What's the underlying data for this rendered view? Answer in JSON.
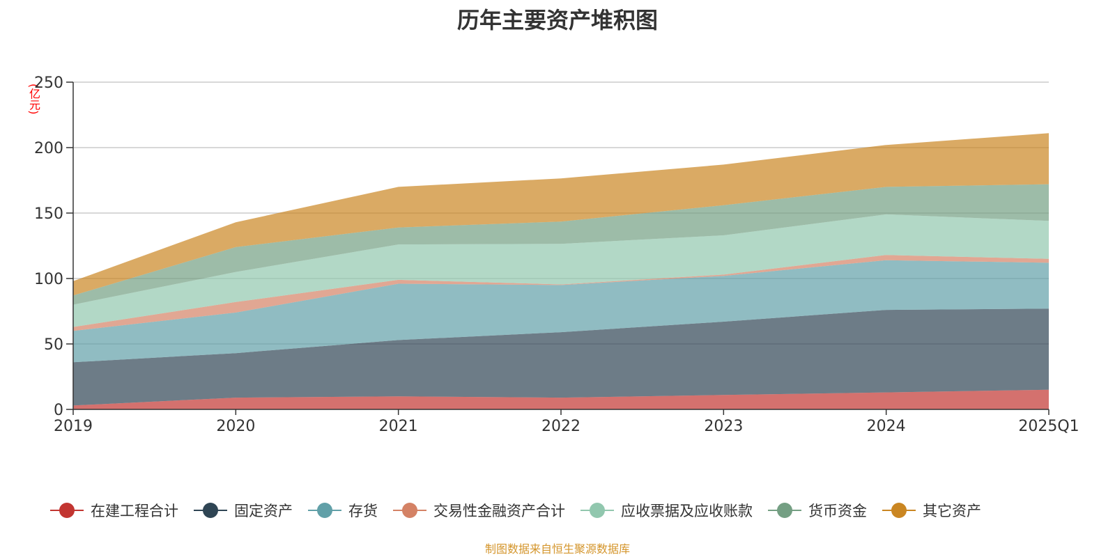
{
  "chart_data": {
    "type": "area",
    "stacked": true,
    "title": "历年主要资产堆积图",
    "unit": "(亿元)",
    "categories": [
      "2019",
      "2020",
      "2021",
      "2022",
      "2023",
      "2024",
      "2025Q1"
    ],
    "ylim": [
      0,
      250
    ],
    "yticks": [
      0,
      50,
      100,
      150,
      200,
      250
    ],
    "grid": true,
    "legend_position": "bottom",
    "series": [
      {
        "name": "在建工程合计",
        "color": "#c23531",
        "values": [
          3,
          9,
          10,
          9,
          11,
          13,
          15
        ]
      },
      {
        "name": "固定资产",
        "color": "#2f4554",
        "values": [
          33,
          34,
          43,
          50,
          56,
          63,
          62
        ]
      },
      {
        "name": "存货",
        "color": "#61a0a8",
        "values": [
          24,
          31,
          43,
          36,
          35,
          38,
          35
        ]
      },
      {
        "name": "交易性金融资产合计",
        "color": "#d48265",
        "values": [
          3,
          8,
          3,
          0.5,
          1,
          4,
          3
        ]
      },
      {
        "name": "应收票据及应收账款",
        "color": "#91c7ae",
        "values": [
          17,
          23,
          27,
          31,
          30,
          31,
          29
        ]
      },
      {
        "name": "货币资金",
        "color": "#749f83",
        "values": [
          7,
          19,
          13,
          17,
          23,
          21,
          28
        ]
      },
      {
        "name": "其它资产",
        "color": "#ca8622",
        "values": [
          11,
          19,
          31,
          33,
          31,
          32,
          39
        ]
      }
    ],
    "source": "制图数据来自恒生聚源数据库"
  }
}
